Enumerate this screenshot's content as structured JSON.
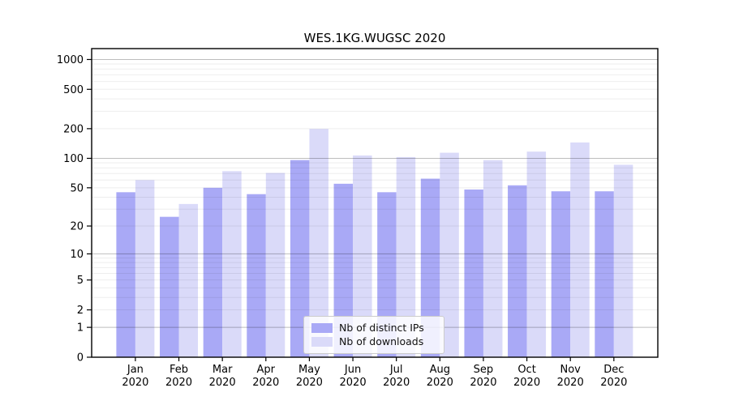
{
  "chart_data": {
    "type": "bar",
    "title": "WES.1KG.WUGSC 2020",
    "scale": "log1p",
    "ylim": [
      0,
      1250
    ],
    "grid": "major+minor, drawn over bars",
    "legend_position": "lower center",
    "categories": [
      "Jan",
      "Feb",
      "Mar",
      "Apr",
      "May",
      "Jun",
      "Jul",
      "Aug",
      "Sep",
      "Oct",
      "Nov",
      "Dec"
    ],
    "category_year": "2020",
    "yticks": [
      0,
      1,
      2,
      5,
      10,
      20,
      50,
      100,
      200,
      500,
      1000
    ],
    "series": [
      {
        "name": "Nb of distinct IPs",
        "color": "#a9a9f6",
        "values": [
          45,
          25,
          50,
          43,
          96,
          55,
          45,
          62,
          48,
          53,
          46,
          46
        ]
      },
      {
        "name": "Nb of downloads",
        "color": "#dadaf9",
        "values": [
          60,
          34,
          74,
          71,
          199,
          107,
          103,
          114,
          96,
          117,
          145,
          86
        ]
      }
    ]
  },
  "colors": {
    "background": "#ffffff",
    "axis": "#000000",
    "tick_label": "#000000",
    "grid_major": "rgba(0,0,0,0.26)",
    "grid_minor": "rgba(0,0,0,0.07)",
    "legend_border": "#cccccc"
  }
}
